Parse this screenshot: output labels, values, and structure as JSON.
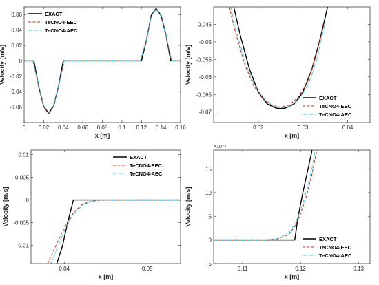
{
  "colors": {
    "exact": "#000000",
    "eec": "#cc3311",
    "aec": "#33ccee",
    "axis": "#262626"
  },
  "chart_data": [
    {
      "type": "line",
      "xlabel": "x [m]",
      "ylabel": "Velocity [m/s]",
      "xlim": [
        0,
        0.16
      ],
      "ylim": [
        -0.08,
        0.07
      ],
      "xticks": [
        0,
        0.02,
        0.04,
        0.06,
        0.08,
        0.1,
        0.12,
        0.14,
        0.16
      ],
      "xticklabels": [
        "0",
        "0.02",
        "0.04",
        "0.06",
        "0.08",
        "0.1",
        "0.12",
        "0.14",
        "0.16"
      ],
      "yticks": [
        0.06,
        0.04,
        0.02,
        0,
        -0.02,
        -0.04,
        -0.06
      ],
      "yticklabels": [
        "0.06",
        "0.04",
        "0.02",
        "0",
        "-0.02",
        "-0.04",
        "-0.06"
      ],
      "legend_position": "top-left",
      "series": [
        {
          "name": "EXACT",
          "style": "solid",
          "x": [
            0,
            0.01,
            0.015,
            0.02,
            0.025,
            0.03,
            0.035,
            0.04,
            0.12,
            0.125,
            0.13,
            0.135,
            0.14,
            0.145,
            0.15,
            0.155,
            0.16
          ],
          "y": [
            0,
            0,
            -0.034,
            -0.059,
            -0.068,
            -0.059,
            -0.034,
            0,
            0,
            0.026,
            0.059,
            0.068,
            0.059,
            0.034,
            0,
            0,
            0
          ]
        },
        {
          "name": "TeCNO4-EEC",
          "style": "dashed",
          "x": [
            0,
            0.009,
            0.015,
            0.02,
            0.025,
            0.03,
            0.035,
            0.041,
            0.119,
            0.125,
            0.13,
            0.135,
            0.14,
            0.145,
            0.151,
            0.16
          ],
          "y": [
            0,
            0,
            -0.033,
            -0.058,
            -0.067,
            -0.058,
            -0.034,
            0,
            0,
            0.027,
            0.058,
            0.067,
            0.058,
            0.033,
            0,
            0
          ]
        },
        {
          "name": "TeCNO4-AEC",
          "style": "dashdot",
          "x": [
            0,
            0.009,
            0.015,
            0.02,
            0.025,
            0.03,
            0.035,
            0.041,
            0.119,
            0.125,
            0.13,
            0.135,
            0.14,
            0.145,
            0.151,
            0.16
          ],
          "y": [
            0,
            0,
            -0.033,
            -0.058,
            -0.067,
            -0.058,
            -0.034,
            0,
            0,
            0.027,
            0.058,
            0.067,
            0.058,
            0.033,
            0,
            0
          ]
        }
      ]
    },
    {
      "type": "line",
      "xlabel": "x [m]",
      "ylabel": "Velocity [m/s]",
      "xlim": [
        0.01,
        0.045
      ],
      "ylim": [
        -0.073,
        -0.04
      ],
      "xticks": [
        0.02,
        0.03,
        0.04
      ],
      "xticklabels": [
        "0.02",
        "0.03",
        "0.04"
      ],
      "yticks": [
        -0.045,
        -0.05,
        -0.055,
        -0.06,
        -0.065,
        -0.07
      ],
      "yticklabels": [
        "-0.045",
        "-0.05",
        "-0.055",
        "-0.06",
        "-0.065",
        "-0.07"
      ],
      "legend_position": "bottom-right",
      "series": [
        {
          "name": "EXACT",
          "style": "solid",
          "x": [
            0.0145,
            0.016,
            0.018,
            0.02,
            0.022,
            0.024,
            0.025,
            0.026,
            0.028,
            0.03,
            0.032,
            0.034,
            0.0355
          ],
          "y": [
            -0.04,
            -0.0483,
            -0.0577,
            -0.0643,
            -0.0677,
            -0.0689,
            -0.069,
            -0.0689,
            -0.0677,
            -0.0643,
            -0.0577,
            -0.0483,
            -0.04
          ]
        },
        {
          "name": "TeCNO4-EEC",
          "style": "dashed",
          "x": [
            0.0135,
            0.015,
            0.017,
            0.019,
            0.021,
            0.023,
            0.025,
            0.027,
            0.029,
            0.031,
            0.033,
            0.0345
          ],
          "y": [
            -0.04,
            -0.0478,
            -0.0566,
            -0.0626,
            -0.0663,
            -0.0681,
            -0.0686,
            -0.0679,
            -0.0657,
            -0.0614,
            -0.0536,
            -0.045
          ]
        },
        {
          "name": "TeCNO4-AEC",
          "style": "dashdot",
          "x": [
            0.0138,
            0.0152,
            0.0172,
            0.0192,
            0.0212,
            0.0232,
            0.0252,
            0.0272,
            0.0292,
            0.0312,
            0.0332,
            0.035
          ],
          "y": [
            -0.04,
            -0.0476,
            -0.0564,
            -0.0624,
            -0.0661,
            -0.068,
            -0.0687,
            -0.0682,
            -0.0662,
            -0.0621,
            -0.0546,
            -0.044
          ]
        }
      ]
    },
    {
      "type": "line",
      "xlabel": "x [m]",
      "ylabel": "Velocity [m/s]",
      "xlim": [
        0.036,
        0.054
      ],
      "ylim": [
        -0.014,
        0.011
      ],
      "xticks": [
        0.04,
        0.05
      ],
      "xticklabels": [
        "0.04",
        "0.05"
      ],
      "yticks": [
        0.01,
        0.005,
        0,
        -0.005,
        -0.01
      ],
      "yticklabels": [
        "0.01",
        "0.005",
        "0",
        "-0.005",
        "-0.01"
      ],
      "legend_position": "top-right",
      "series": [
        {
          "name": "EXACT",
          "style": "solid",
          "x": [
            0.0391,
            0.0398,
            0.0404,
            0.0411,
            0.054
          ],
          "y": [
            -0.014,
            -0.01,
            -0.005,
            0,
            0
          ]
        },
        {
          "name": "TeCNO4-EEC",
          "style": "dashed",
          "x": [
            0.038,
            0.0388,
            0.0396,
            0.0404,
            0.0412,
            0.042,
            0.0428,
            0.0436,
            0.0444,
            0.0452,
            0.046,
            0.054
          ],
          "y": [
            -0.014,
            -0.0108,
            -0.0076,
            -0.0048,
            -0.0026,
            -0.0012,
            -0.0005,
            -0.0002,
            -5e-05,
            0,
            0,
            0
          ]
        },
        {
          "name": "TeCNO4-AEC",
          "style": "dashdot",
          "x": [
            0.0384,
            0.0392,
            0.04,
            0.0408,
            0.0416,
            0.0424,
            0.0432,
            0.044,
            0.0448,
            0.0456,
            0.054
          ],
          "y": [
            -0.014,
            -0.0103,
            -0.0068,
            -0.004,
            -0.0021,
            -0.001,
            -0.0004,
            -0.00015,
            -4e-05,
            0,
            0
          ]
        }
      ]
    },
    {
      "type": "line",
      "xlabel": "x [m]",
      "ylabel": "Velocity [m/s]",
      "ylabel_multiplier": "×10⁻³",
      "xlim": [
        0.105,
        0.132
      ],
      "ylim": [
        -0.005,
        0.019
      ],
      "xticks": [
        0.11,
        0.12,
        0.13
      ],
      "xticklabels": [
        "0.11",
        "0.12",
        "0.13"
      ],
      "yticks": [
        0.015,
        0.01,
        0.005,
        0,
        -0.005
      ],
      "yticklabels": [
        "15",
        "10",
        "5",
        "0",
        "-5"
      ],
      "legend_position": "bottom-right",
      "series": [
        {
          "name": "EXACT",
          "style": "solid",
          "x": [
            0.105,
            0.119,
            0.1196,
            0.1204,
            0.1213,
            0.122
          ],
          "y": [
            0,
            0,
            0.005,
            0.01,
            0.015,
            0.019
          ]
        },
        {
          "name": "TeCNO4-EEC",
          "style": "dashed",
          "x": [
            0.105,
            0.114,
            0.116,
            0.118,
            0.119,
            0.12,
            0.121,
            0.122,
            0.1228
          ],
          "y": [
            0,
            0,
            0.0002,
            0.0012,
            0.0028,
            0.0055,
            0.0092,
            0.014,
            0.019
          ]
        },
        {
          "name": "TeCNO4-AEC",
          "style": "dashdot",
          "x": [
            0.105,
            0.114,
            0.116,
            0.118,
            0.119,
            0.12,
            0.121,
            0.122,
            0.1225
          ],
          "y": [
            0,
            0,
            0.0003,
            0.0015,
            0.0033,
            0.0062,
            0.0102,
            0.0152,
            0.019
          ]
        }
      ]
    }
  ]
}
